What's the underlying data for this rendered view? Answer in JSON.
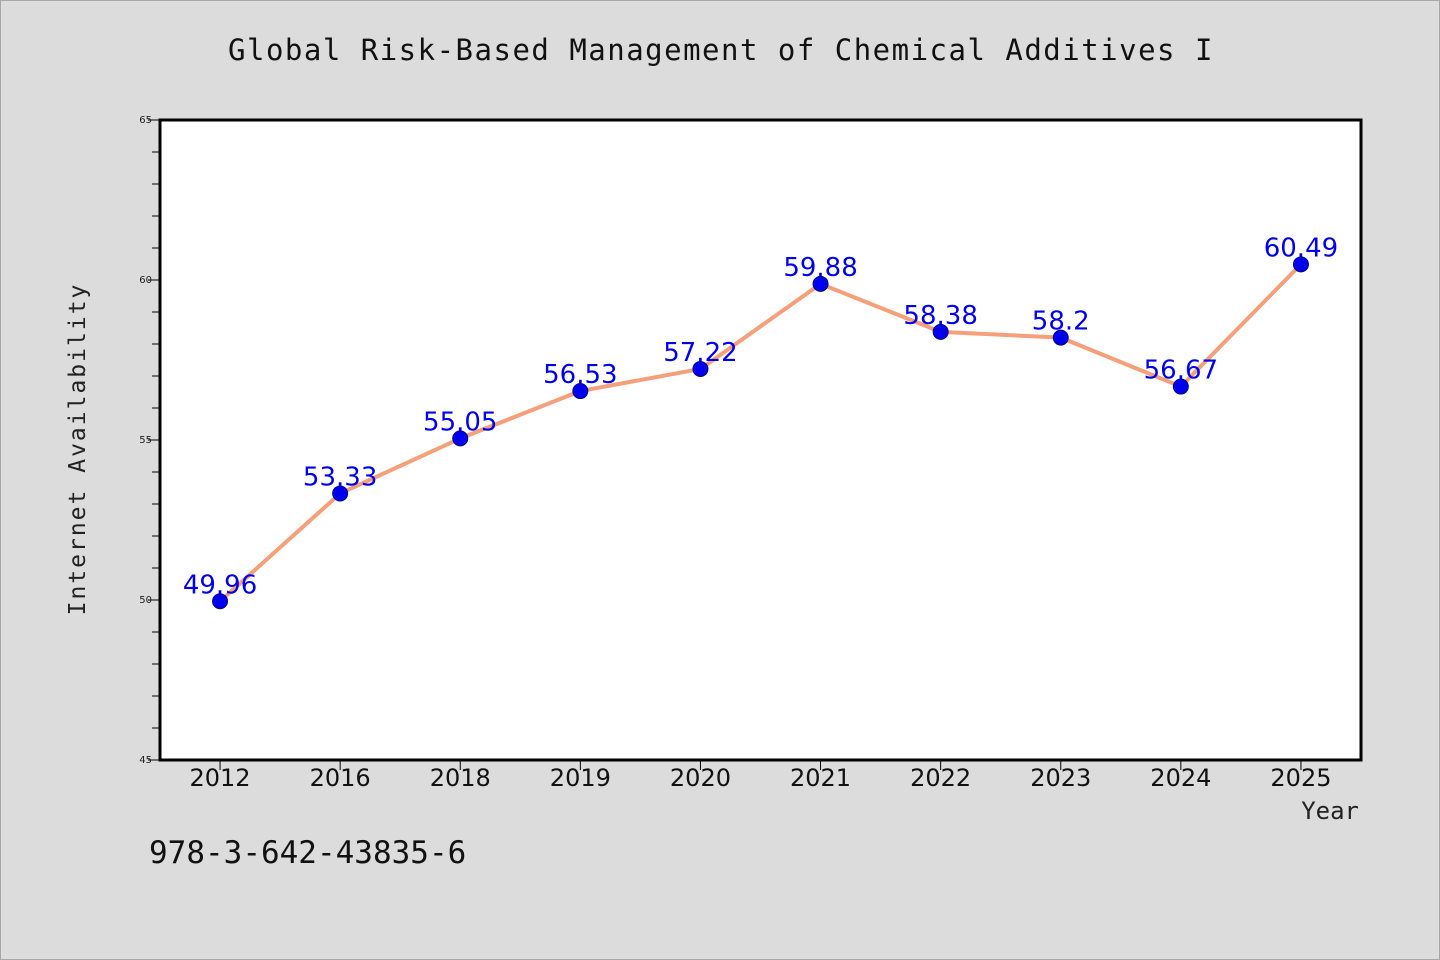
{
  "colors": {
    "background": "#dcdcdc",
    "plot_background": "#ffffff",
    "line": "#f5a07a",
    "marker": "#0000ee",
    "label": "#0000ee"
  },
  "chart_data": {
    "type": "line",
    "title": "Global Risk-Based Management of Chemical Additives I",
    "xlabel": "Year",
    "ylabel": "Internet Availability",
    "categories": [
      "2012",
      "2016",
      "2018",
      "2019",
      "2020",
      "2021",
      "2022",
      "2023",
      "2024",
      "2025"
    ],
    "series": [
      {
        "values": [
          49.96,
          53.33,
          55.05,
          56.53,
          57.22,
          59.88,
          58.38,
          58.2,
          56.67,
          60.49
        ],
        "labels": [
          "49.96",
          "53.33",
          "55.05",
          "56.53",
          "57.22",
          "59.88",
          "58.38",
          "58.2",
          "56.67",
          "60.49"
        ]
      }
    ],
    "ylim": [
      45,
      65
    ],
    "yticks": [
      45,
      50,
      55,
      60,
      65
    ],
    "grid": false,
    "legend": "none"
  },
  "footnote": "978-3-642-43835-6"
}
